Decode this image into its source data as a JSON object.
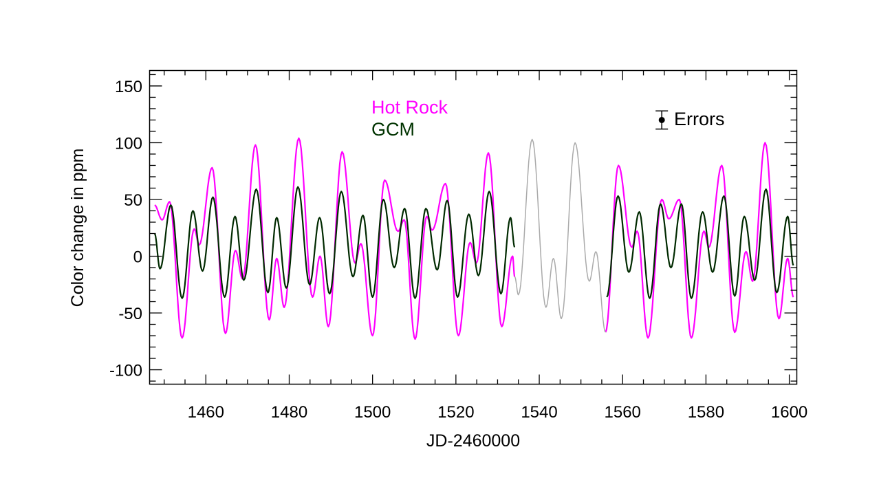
{
  "chart_data": {
    "type": "line",
    "xlabel": "JD-2460000",
    "ylabel": "Color change in ppm",
    "xlim": [
      1446.5,
      1601.8
    ],
    "ylim": [
      -112.7,
      163.6
    ],
    "xticks": [
      1460,
      1480,
      1500,
      1520,
      1540,
      1560,
      1580,
      1600
    ],
    "xtick_labels": [
      "1460",
      "1480",
      "1500",
      "1520",
      "1540",
      "1560",
      "1580",
      "1600"
    ],
    "x_minor_step": 5,
    "yticks": [
      150,
      100,
      50,
      0,
      -50,
      -100
    ],
    "ytick_labels": [
      "150",
      "100",
      "50",
      "0",
      "-50",
      "-100"
    ],
    "y_minor_step": 10,
    "grid": false,
    "legend": {
      "placement": "top-center",
      "entries": [
        {
          "label": "Hot Rock",
          "color": "#ff00ff"
        },
        {
          "label": "GCM",
          "color": "#003300"
        }
      ]
    },
    "error_bar": {
      "label": "Errors",
      "x": 1569.4,
      "y": 120,
      "err": 8
    },
    "series": [
      {
        "name": "Hot Rock",
        "color": "#ff00ff",
        "segments": [
          [
            [
              1447.7,
              45
            ],
            [
              1449.5,
              32
            ],
            [
              1451.3,
              48
            ],
            [
              1454.3,
              -72
            ],
            [
              1457.2,
              24
            ],
            [
              1458.4,
              10
            ],
            [
              1461.5,
              78
            ],
            [
              1464.7,
              -68
            ],
            [
              1467.1,
              5
            ],
            [
              1468.8,
              -20
            ],
            [
              1471.9,
              98
            ],
            [
              1475.2,
              -56
            ],
            [
              1477.0,
              -2
            ],
            [
              1478.8,
              -45
            ],
            [
              1482.3,
              104
            ],
            [
              1485.6,
              -36
            ],
            [
              1487.4,
              0
            ],
            [
              1489.4,
              -62
            ],
            [
              1492.7,
              92
            ],
            [
              1495.8,
              -6
            ],
            [
              1497.2,
              11
            ],
            [
              1500.0,
              -70
            ],
            [
              1502.9,
              67
            ],
            [
              1506.1,
              22
            ],
            [
              1507.6,
              32
            ],
            [
              1510.2,
              -73
            ],
            [
              1513.0,
              35
            ],
            [
              1514.3,
              23
            ],
            [
              1517.5,
              64
            ],
            [
              1520.6,
              -70
            ],
            [
              1523.4,
              12
            ],
            [
              1524.9,
              -6
            ],
            [
              1527.8,
              91
            ],
            [
              1531.0,
              -62
            ],
            [
              1533.6,
              0
            ],
            [
              1534.1,
              -18
            ]
          ],
          [
            [
              1555.9,
              -67
            ],
            [
              1559.0,
              80
            ],
            [
              1562.2,
              8
            ],
            [
              1563.5,
              22
            ],
            [
              1566.1,
              -72
            ],
            [
              1569.4,
              50
            ],
            [
              1571.1,
              33
            ],
            [
              1573.6,
              50
            ],
            [
              1576.5,
              -72
            ],
            [
              1579.5,
              22
            ],
            [
              1580.7,
              8
            ],
            [
              1583.8,
              80
            ],
            [
              1586.9,
              -67
            ],
            [
              1589.6,
              4
            ],
            [
              1591.2,
              -22
            ],
            [
              1594.2,
              100
            ],
            [
              1597.5,
              -55
            ],
            [
              1599.6,
              -2
            ],
            [
              1601.0,
              -36
            ]
          ]
        ]
      },
      {
        "name": "",
        "color": "#aaaaaa",
        "segments": [
          [
            [
              1534.1,
              -18
            ],
            [
              1535.0,
              -34
            ],
            [
              1538.3,
              103
            ],
            [
              1541.6,
              -45
            ],
            [
              1543.4,
              -2
            ],
            [
              1545.3,
              -55
            ],
            [
              1548.6,
              100
            ],
            [
              1552.0,
              -22
            ],
            [
              1553.6,
              4
            ],
            [
              1555.9,
              -67
            ]
          ]
        ]
      },
      {
        "name": "GCM",
        "color": "#002a00",
        "segments": [
          [
            [
              1447.7,
              20
            ],
            [
              1449.0,
              -11
            ],
            [
              1451.6,
              45
            ],
            [
              1454.3,
              -37
            ],
            [
              1456.9,
              40
            ],
            [
              1459.2,
              -13
            ],
            [
              1461.7,
              52
            ],
            [
              1464.5,
              -36
            ],
            [
              1467.0,
              35
            ],
            [
              1469.1,
              -21
            ],
            [
              1472.1,
              59
            ],
            [
              1474.9,
              -32
            ],
            [
              1477.0,
              34
            ],
            [
              1479.3,
              -28
            ],
            [
              1482.1,
              61
            ],
            [
              1484.9,
              -25
            ],
            [
              1487.3,
              34
            ],
            [
              1489.7,
              -33
            ],
            [
              1492.5,
              57
            ],
            [
              1495.3,
              -18
            ],
            [
              1497.7,
              36
            ],
            [
              1500.0,
              -36
            ],
            [
              1502.6,
              50
            ],
            [
              1505.2,
              -10
            ],
            [
              1507.7,
              42
            ],
            [
              1510.2,
              -37
            ],
            [
              1512.8,
              42
            ],
            [
              1515.5,
              -12
            ],
            [
              1517.9,
              49
            ],
            [
              1520.4,
              -36
            ],
            [
              1523.1,
              37
            ],
            [
              1525.4,
              -17
            ],
            [
              1528.0,
              57
            ],
            [
              1530.8,
              -33
            ],
            [
              1533.1,
              34
            ],
            [
              1534.1,
              8
            ]
          ],
          [
            [
              1556.2,
              -36
            ],
            [
              1558.9,
              53
            ],
            [
              1561.5,
              -14
            ],
            [
              1564.0,
              39
            ],
            [
              1566.5,
              -37
            ],
            [
              1569.1,
              46
            ],
            [
              1571.6,
              -10
            ],
            [
              1574.1,
              46
            ],
            [
              1576.5,
              -37
            ],
            [
              1579.2,
              39
            ],
            [
              1581.6,
              -14
            ],
            [
              1584.3,
              53
            ],
            [
              1586.9,
              -35
            ],
            [
              1589.2,
              35
            ],
            [
              1591.7,
              -21
            ],
            [
              1594.4,
              59
            ],
            [
              1597.0,
              -32
            ],
            [
              1599.6,
              35
            ],
            [
              1601.0,
              -8
            ]
          ]
        ]
      }
    ]
  }
}
